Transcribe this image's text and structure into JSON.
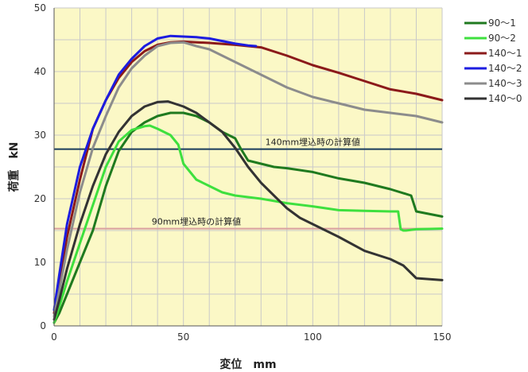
{
  "chart_data": {
    "type": "line",
    "xlabel": "変位　mm",
    "ylabel": "荷重　kN",
    "xlim": [
      0,
      150
    ],
    "ylim": [
      0,
      50
    ],
    "xticks": [
      "0",
      "50",
      "100",
      "150"
    ],
    "yticks": [
      "0",
      "10",
      "20",
      "30",
      "40",
      "50"
    ],
    "grid": true,
    "background": "#fbf8c6",
    "legend_position": "right",
    "series": [
      {
        "name": "90～1",
        "color": "#1f7a1f",
        "x": [
          0,
          2,
          5,
          10,
          15,
          20,
          25,
          30,
          35,
          40,
          45,
          50,
          55,
          60,
          65,
          70,
          72,
          75,
          80,
          85,
          90,
          100,
          110,
          120,
          130,
          138,
          140,
          150
        ],
        "y": [
          0.5,
          2,
          5,
          10,
          15,
          22,
          27.5,
          30.5,
          32,
          33,
          33.5,
          33.5,
          33,
          32,
          30.5,
          29.5,
          28,
          26,
          25.5,
          25,
          24.8,
          24.2,
          23.2,
          22.5,
          21.5,
          20.5,
          18,
          17.2
        ]
      },
      {
        "name": "90～2",
        "color": "#3ee03e",
        "x": [
          0,
          2,
          5,
          10,
          15,
          20,
          25,
          30,
          35,
          37,
          40,
          45,
          48,
          50,
          55,
          60,
          65,
          70,
          80,
          90,
          100,
          110,
          120,
          130,
          133,
          134,
          135,
          136,
          140,
          150
        ],
        "y": [
          0.5,
          3,
          7,
          13,
          19,
          25,
          29,
          30.8,
          31.4,
          31.5,
          31,
          30,
          28.5,
          25.5,
          23,
          22,
          21,
          20.5,
          20,
          19.3,
          18.8,
          18.2,
          18.1,
          18,
          18,
          15.2,
          15,
          15,
          15.2,
          15.3
        ]
      },
      {
        "name": "140～1",
        "color": "#8b1a1a",
        "x": [
          0,
          2,
          5,
          10,
          15,
          20,
          25,
          30,
          35,
          40,
          45,
          50,
          55,
          60,
          70,
          80,
          90,
          100,
          110,
          120,
          130,
          140,
          150
        ],
        "y": [
          2,
          7,
          14,
          23,
          31,
          35.5,
          39,
          41.5,
          43.2,
          44.2,
          44.6,
          44.7,
          44.6,
          44.5,
          44.2,
          43.8,
          42.5,
          41,
          39.8,
          38.5,
          37.2,
          36.5,
          35.5
        ]
      },
      {
        "name": "140～2",
        "color": "#1c1ce0",
        "x": [
          0,
          2,
          5,
          10,
          15,
          20,
          25,
          30,
          35,
          40,
          45,
          50,
          55,
          60,
          65,
          70,
          75,
          78
        ],
        "y": [
          2.5,
          8,
          16,
          25,
          31,
          35.5,
          39.5,
          42,
          44,
          45.2,
          45.6,
          45.5,
          45.4,
          45.2,
          44.8,
          44.4,
          44.1,
          44
        ]
      },
      {
        "name": "140～3",
        "color": "#8c8c8c",
        "x": [
          0,
          2,
          5,
          10,
          15,
          20,
          25,
          30,
          35,
          40,
          45,
          50,
          55,
          60,
          70,
          80,
          90,
          100,
          110,
          120,
          130,
          140,
          150
        ],
        "y": [
          1.5,
          5.5,
          12,
          21,
          28,
          33,
          37.5,
          40.5,
          42.5,
          44,
          44.5,
          44.6,
          44,
          43.5,
          41.5,
          39.5,
          37.5,
          36,
          35,
          34,
          33.5,
          33,
          32
        ]
      },
      {
        "name": "140～0",
        "color": "#333333",
        "x": [
          0,
          2,
          5,
          10,
          15,
          20,
          25,
          30,
          35,
          40,
          44,
          50,
          55,
          60,
          65,
          70,
          75,
          80,
          85,
          90,
          95,
          100,
          110,
          120,
          130,
          135,
          140,
          150
        ],
        "y": [
          1,
          4,
          9,
          16,
          22,
          27,
          30.5,
          33,
          34.5,
          35.2,
          35.3,
          34.5,
          33.5,
          32,
          30.5,
          28,
          25,
          22.5,
          20.5,
          18.5,
          17,
          16,
          14,
          11.8,
          10.5,
          9.5,
          7.5,
          7.2
        ]
      }
    ],
    "reference_lines": [
      {
        "label": "140mm埋込時の計算値",
        "y": 27.8,
        "color": "#1a3d5c",
        "label_x": 100
      },
      {
        "label": "90mm埋込時の計算値",
        "y": 15.3,
        "color": "#d9a0a0",
        "label_x": 55
      }
    ]
  }
}
